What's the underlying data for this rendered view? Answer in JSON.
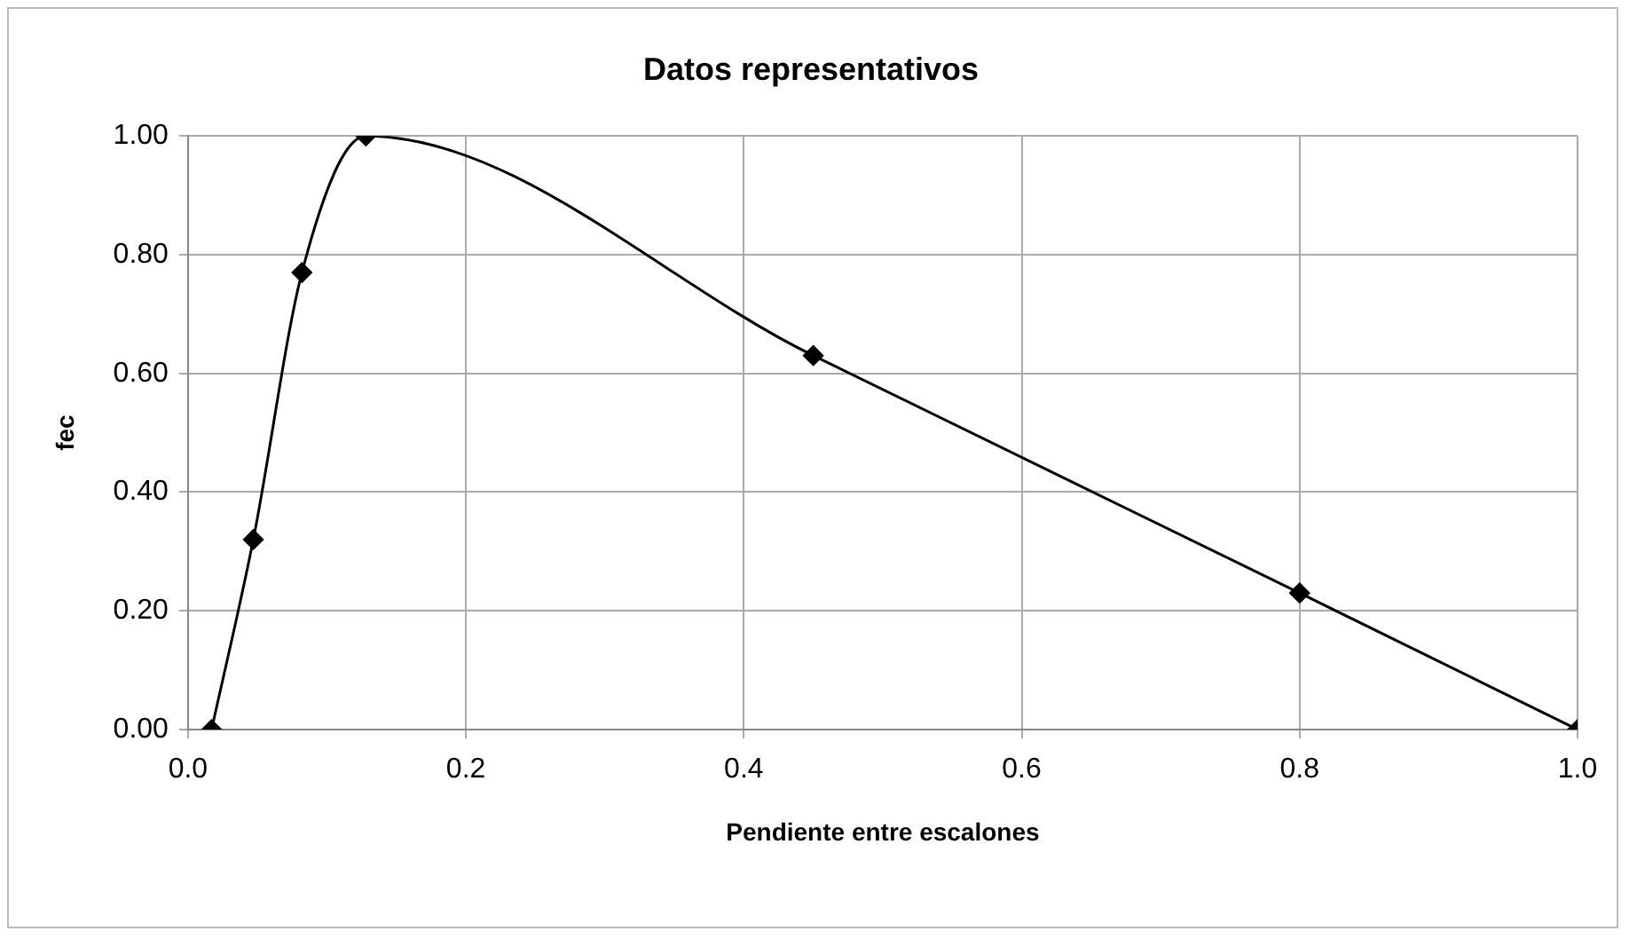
{
  "chart_data": {
    "type": "line",
    "title": "Datos representativos",
    "xlabel": "Pendiente entre escalones",
    "ylabel": "fec",
    "x": [
      0.017,
      0.047,
      0.082,
      0.128,
      0.45,
      0.8,
      1.0
    ],
    "series": [
      {
        "color": "#000000",
        "values": [
          0,
          0.32,
          0.77,
          1.0,
          0.63,
          0.23,
          0
        ]
      }
    ],
    "xlim": [
      0,
      1
    ],
    "xticks": [
      {
        "value": 0,
        "label": "0.0"
      },
      {
        "value": 0.2,
        "label": "0.2"
      },
      {
        "value": 0.4,
        "label": "0.4"
      },
      {
        "value": 0.6,
        "label": "0.6"
      },
      {
        "value": 0.8,
        "label": "0.8"
      },
      {
        "value": 1,
        "label": "1.0"
      }
    ],
    "ylim": [
      0,
      1
    ],
    "yticks": [
      {
        "value": 0,
        "label": "0.00"
      },
      {
        "value": 0.2,
        "label": "0.20"
      },
      {
        "value": 0.4,
        "label": "0.40"
      },
      {
        "value": 0.6,
        "label": "0.60"
      },
      {
        "value": 0.8,
        "label": "0.80"
      },
      {
        "value": 1,
        "label": "1.00"
      }
    ],
    "grid": true,
    "legend": false,
    "marker": "diamond",
    "line_style": "solid"
  }
}
